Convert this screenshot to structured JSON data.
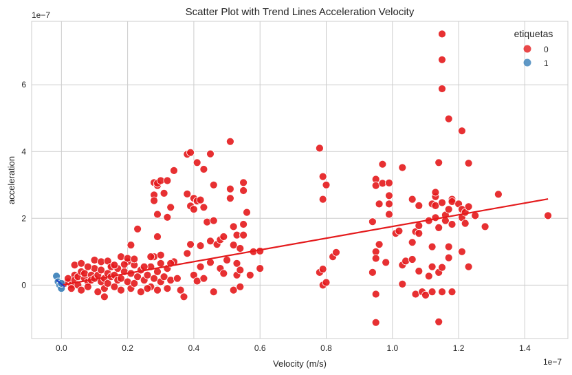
{
  "chart_data": {
    "type": "scatter",
    "title": "Scatter Plot with Trend Lines Acceleration Velocity",
    "xlabel": "Velocity (m/s)",
    "ylabel": "acceleration",
    "x_scale_label": "1e−7",
    "y_scale_label": "1e−7",
    "x_ticks": [
      "0.0",
      "0.2",
      "0.4",
      "0.6",
      "0.8",
      "1.0",
      "1.2",
      "1.4"
    ],
    "y_ticks": [
      "0",
      "2",
      "4",
      "6"
    ],
    "xlim": [
      -0.09,
      1.53
    ],
    "ylim": [
      -1.6,
      7.9
    ],
    "grid": true,
    "legend": {
      "title": "etiquetas",
      "placement": "top-right",
      "entries": [
        {
          "label": "0",
          "color": "#e41a1c"
        },
        {
          "label": "1",
          "color": "#377eb8"
        }
      ]
    },
    "series": [
      {
        "name": "0",
        "color": "#e41a1c",
        "points": [
          [
            0.01,
            0.05
          ],
          [
            0.02,
            0.1
          ],
          [
            0.02,
            0.2
          ],
          [
            0.03,
            0.0
          ],
          [
            0.03,
            -0.1
          ],
          [
            0.04,
            0.3
          ],
          [
            0.04,
            0.15
          ],
          [
            0.05,
            0.25
          ],
          [
            0.05,
            0.0
          ],
          [
            0.06,
            0.4
          ],
          [
            0.06,
            -0.15
          ],
          [
            0.07,
            0.2
          ],
          [
            0.07,
            0.35
          ],
          [
            0.08,
            0.1
          ],
          [
            0.08,
            -0.05
          ],
          [
            0.09,
            0.3
          ],
          [
            0.09,
            0.15
          ],
          [
            0.1,
            0.2
          ],
          [
            0.1,
            0.5
          ],
          [
            0.11,
            -0.2
          ],
          [
            0.11,
            0.3
          ],
          [
            0.12,
            0.1
          ],
          [
            0.12,
            0.45
          ],
          [
            0.13,
            0.2
          ],
          [
            0.13,
            -0.1
          ],
          [
            0.14,
            0.35
          ],
          [
            0.14,
            0.05
          ],
          [
            0.15,
            0.25
          ],
          [
            0.15,
            0.6
          ],
          [
            0.16,
            -0.05
          ],
          [
            0.16,
            0.3
          ],
          [
            0.17,
            0.15
          ],
          [
            0.17,
            0.5
          ],
          [
            0.18,
            0.2
          ],
          [
            0.18,
            -0.15
          ],
          [
            0.19,
            0.4
          ],
          [
            0.2,
            0.1
          ],
          [
            0.2,
            0.7
          ],
          [
            0.21,
            -0.1
          ],
          [
            0.21,
            0.35
          ],
          [
            0.22,
            0.05
          ],
          [
            0.22,
            0.6
          ],
          [
            0.23,
            0.25
          ],
          [
            0.24,
            -0.2
          ],
          [
            0.24,
            0.45
          ],
          [
            0.25,
            0.15
          ],
          [
            0.26,
            0.3
          ],
          [
            0.27,
            -0.05
          ],
          [
            0.27,
            0.55
          ],
          [
            0.28,
            0.2
          ],
          [
            0.28,
            0.85
          ],
          [
            0.29,
            -0.15
          ],
          [
            0.29,
            0.4
          ],
          [
            0.3,
            0.1
          ],
          [
            0.3,
            0.65
          ],
          [
            0.31,
            0.25
          ],
          [
            0.32,
            -0.1
          ],
          [
            0.32,
            0.5
          ],
          [
            0.33,
            0.15
          ],
          [
            0.34,
            0.7
          ],
          [
            0.04,
            0.6
          ],
          [
            0.06,
            0.65
          ],
          [
            0.08,
            0.55
          ],
          [
            0.1,
            0.75
          ],
          [
            0.12,
            0.7
          ],
          [
            0.13,
            -0.35
          ],
          [
            0.14,
            0.72
          ],
          [
            0.15,
            0.55
          ],
          [
            0.16,
            0.6
          ],
          [
            0.18,
            0.85
          ],
          [
            0.19,
            0.62
          ],
          [
            0.2,
            0.8
          ],
          [
            0.21,
            1.2
          ],
          [
            0.22,
            0.78
          ],
          [
            0.23,
            1.68
          ],
          [
            0.25,
            0.55
          ],
          [
            0.26,
            -0.1
          ],
          [
            0.27,
            0.85
          ],
          [
            0.28,
            3.07
          ],
          [
            0.28,
            2.7
          ],
          [
            0.28,
            2.53
          ],
          [
            0.29,
            2.98
          ],
          [
            0.29,
            3.05
          ],
          [
            0.29,
            2.12
          ],
          [
            0.29,
            1.45
          ],
          [
            0.3,
            3.13
          ],
          [
            0.3,
            0.9
          ],
          [
            0.31,
            2.75
          ],
          [
            0.32,
            3.13
          ],
          [
            0.32,
            2.03
          ],
          [
            0.33,
            2.33
          ],
          [
            0.33,
            0.65
          ],
          [
            0.34,
            3.43
          ],
          [
            0.35,
            0.2
          ],
          [
            0.36,
            -0.15
          ],
          [
            0.37,
            -0.35
          ],
          [
            0.38,
            3.92
          ],
          [
            0.38,
            0.95
          ],
          [
            0.38,
            2.73
          ],
          [
            0.39,
            2.37
          ],
          [
            0.39,
            3.97
          ],
          [
            0.39,
            1.22
          ],
          [
            0.4,
            2.27
          ],
          [
            0.4,
            0.3
          ],
          [
            0.4,
            2.6
          ],
          [
            0.41,
            3.67
          ],
          [
            0.41,
            2.52
          ],
          [
            0.41,
            0.12
          ],
          [
            0.42,
            0.55
          ],
          [
            0.42,
            1.18
          ],
          [
            0.42,
            2.55
          ],
          [
            0.43,
            3.47
          ],
          [
            0.43,
            2.33
          ],
          [
            0.43,
            0.2
          ],
          [
            0.44,
            1.89
          ],
          [
            0.45,
            1.32
          ],
          [
            0.45,
            3.93
          ],
          [
            0.45,
            0.68
          ],
          [
            0.46,
            1.93
          ],
          [
            0.46,
            3.0
          ],
          [
            0.46,
            -0.2
          ],
          [
            0.47,
            1.22
          ],
          [
            0.48,
            0.5
          ],
          [
            0.48,
            1.36
          ],
          [
            0.49,
            1.45
          ],
          [
            0.49,
            0.35
          ],
          [
            0.5,
            0.75
          ],
          [
            0.51,
            4.3
          ],
          [
            0.51,
            2.88
          ],
          [
            0.51,
            2.6
          ],
          [
            0.52,
            1.75
          ],
          [
            0.52,
            1.2
          ],
          [
            0.52,
            -0.15
          ],
          [
            0.53,
            0.65
          ],
          [
            0.53,
            0.3
          ],
          [
            0.53,
            1.5
          ],
          [
            0.54,
            0.45
          ],
          [
            0.54,
            1.1
          ],
          [
            0.54,
            -0.05
          ],
          [
            0.55,
            2.83
          ],
          [
            0.55,
            1.82
          ],
          [
            0.55,
            1.5
          ],
          [
            0.55,
            3.07
          ],
          [
            0.56,
            2.18
          ],
          [
            0.57,
            0.3
          ],
          [
            0.58,
            1.0
          ],
          [
            0.6,
            1.02
          ],
          [
            0.6,
            0.5
          ],
          [
            0.78,
            4.1
          ],
          [
            0.78,
            0.38
          ],
          [
            0.79,
            3.25
          ],
          [
            0.79,
            2.57
          ],
          [
            0.79,
            0.48
          ],
          [
            0.79,
            0.0
          ],
          [
            0.8,
            3.0
          ],
          [
            0.8,
            0.08
          ],
          [
            0.82,
            0.85
          ],
          [
            0.83,
            0.98
          ],
          [
            0.94,
            1.9
          ],
          [
            0.94,
            0.38
          ],
          [
            0.95,
            3.17
          ],
          [
            0.95,
            2.98
          ],
          [
            0.95,
            1.0
          ],
          [
            0.95,
            0.8
          ],
          [
            0.95,
            -0.27
          ],
          [
            0.95,
            -1.12
          ],
          [
            0.96,
            2.43
          ],
          [
            0.96,
            1.22
          ],
          [
            0.97,
            3.62
          ],
          [
            0.97,
            3.05
          ],
          [
            0.98,
            0.68
          ],
          [
            0.99,
            3.06
          ],
          [
            0.99,
            2.68
          ],
          [
            0.99,
            2.43
          ],
          [
            0.99,
            2.12
          ],
          [
            1.01,
            1.55
          ],
          [
            1.02,
            1.62
          ],
          [
            1.03,
            3.52
          ],
          [
            1.03,
            0.6
          ],
          [
            1.03,
            0.03
          ],
          [
            1.04,
            0.72
          ],
          [
            1.06,
            2.57
          ],
          [
            1.06,
            1.28
          ],
          [
            1.06,
            0.77
          ],
          [
            1.07,
            1.6
          ],
          [
            1.07,
            -0.27
          ],
          [
            1.08,
            2.38
          ],
          [
            1.08,
            1.78
          ],
          [
            1.08,
            1.55
          ],
          [
            1.08,
            0.42
          ],
          [
            1.09,
            -0.2
          ],
          [
            1.1,
            -0.3
          ],
          [
            1.11,
            0.27
          ],
          [
            1.11,
            1.93
          ],
          [
            1.12,
            2.43
          ],
          [
            1.12,
            1.15
          ],
          [
            1.12,
            0.55
          ],
          [
            1.12,
            -0.2
          ],
          [
            1.13,
            2.65
          ],
          [
            1.13,
            2.38
          ],
          [
            1.13,
            2.78
          ],
          [
            1.13,
            2.02
          ],
          [
            1.14,
            3.67
          ],
          [
            1.14,
            1.72
          ],
          [
            1.14,
            0.38
          ],
          [
            1.14,
            -1.1
          ],
          [
            1.15,
            7.52
          ],
          [
            1.15,
            6.75
          ],
          [
            1.15,
            5.88
          ],
          [
            1.15,
            2.47
          ],
          [
            1.15,
            0.53
          ],
          [
            1.15,
            -0.2
          ],
          [
            1.16,
            2.1
          ],
          [
            1.16,
            1.93
          ],
          [
            1.17,
            2.27
          ],
          [
            1.17,
            1.15
          ],
          [
            1.17,
            4.98
          ],
          [
            1.17,
            0.82
          ],
          [
            1.18,
            2.57
          ],
          [
            1.18,
            2.5
          ],
          [
            1.18,
            1.82
          ],
          [
            1.18,
            -0.2
          ],
          [
            1.2,
            2.43
          ],
          [
            1.21,
            4.62
          ],
          [
            1.21,
            2.27
          ],
          [
            1.21,
            2.02
          ],
          [
            1.21,
            1.0
          ],
          [
            1.22,
            1.85
          ],
          [
            1.22,
            2.18
          ],
          [
            1.23,
            3.65
          ],
          [
            1.23,
            2.35
          ],
          [
            1.23,
            0.55
          ],
          [
            1.25,
            2.08
          ],
          [
            1.28,
            1.75
          ],
          [
            1.32,
            2.72
          ],
          [
            1.47,
            2.08
          ]
        ]
      },
      {
        "name": "1",
        "color": "#377eb8",
        "points": [
          [
            -0.015,
            0.27
          ],
          [
            -0.01,
            0.1
          ],
          [
            -0.005,
            0.0
          ],
          [
            0.0,
            -0.1
          ],
          [
            0.0,
            0.05
          ]
        ]
      }
    ],
    "trend_lines": [
      {
        "series": "0",
        "color": "#e41a1c",
        "x": [
          0.0,
          1.47
        ],
        "y": [
          0.0,
          2.58
        ]
      },
      {
        "series": "1",
        "color": "#1f3ec8",
        "x": [
          -0.015,
          0.01
        ],
        "y": [
          0.15,
          -0.05
        ]
      }
    ]
  }
}
